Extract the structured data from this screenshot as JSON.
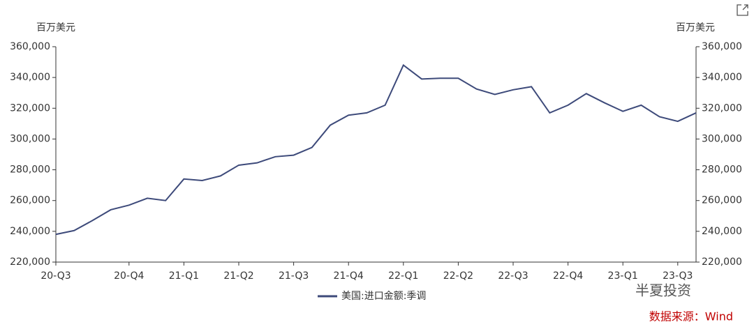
{
  "chart_data": {
    "type": "line",
    "y_label": "百万美元",
    "y2_label": "百万美元",
    "categories": [
      "20-Q3",
      null,
      null,
      null,
      "20-Q4",
      null,
      null,
      "21-Q1",
      null,
      null,
      "21-Q2",
      null,
      null,
      "21-Q3",
      null,
      null,
      "21-Q4",
      null,
      null,
      "22-Q1",
      null,
      null,
      "22-Q2",
      null,
      null,
      "22-Q3",
      null,
      null,
      "22-Q4",
      null,
      null,
      "23-Q1",
      null,
      null,
      "23-Q3",
      null
    ],
    "series": [
      {
        "name": "美国:进口金额:季调",
        "color": "#3d4a7a",
        "values": [
          238000,
          240500,
          247000,
          254000,
          257000,
          261500,
          260000,
          274000,
          273000,
          276000,
          283000,
          284500,
          288500,
          289500,
          294500,
          309000,
          315500,
          317000,
          322000,
          348000,
          339000,
          339500,
          339500,
          332500,
          329000,
          332000,
          334000,
          317000,
          322000,
          329500,
          323500,
          318000,
          322000,
          314500,
          311500,
          317000
        ]
      }
    ],
    "ylim": [
      220000,
      360000
    ],
    "yticks": [
      {
        "value": 220000,
        "label": "220,000"
      },
      {
        "value": 240000,
        "label": "240,000"
      },
      {
        "value": 260000,
        "label": "260,000"
      },
      {
        "value": 280000,
        "label": "280,000"
      },
      {
        "value": 300000,
        "label": "300,000"
      },
      {
        "value": 320000,
        "label": "320,000"
      },
      {
        "value": 340000,
        "label": "340,000"
      },
      {
        "value": 360000,
        "label": "360,000"
      }
    ],
    "y2lim": [
      220000,
      360000
    ],
    "y2ticks": [
      {
        "value": 220000,
        "label": "220,000"
      },
      {
        "value": 240000,
        "label": "240,000"
      },
      {
        "value": 260000,
        "label": "260,000"
      },
      {
        "value": 280000,
        "label": "280,000"
      },
      {
        "value": 300000,
        "label": "300,000"
      },
      {
        "value": 320000,
        "label": "320,000"
      },
      {
        "value": 340000,
        "label": "340,000"
      },
      {
        "value": 360000,
        "label": "360,000"
      }
    ],
    "legend": "bottom",
    "annotations": [
      "半夏投资",
      "数据来源：Wind"
    ]
  }
}
